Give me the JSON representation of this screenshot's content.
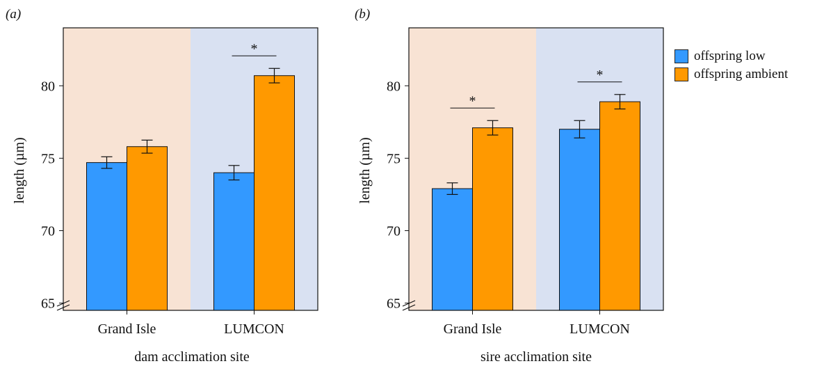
{
  "colors": {
    "low": "#3399ff",
    "ambient": "#ff9900",
    "bg_left": "#f8e3d4",
    "bg_right": "#d9e1f2"
  },
  "legend": {
    "items": [
      {
        "label": "offspring low",
        "color_key": "low"
      },
      {
        "label": "offspring ambient",
        "color_key": "ambient"
      }
    ]
  },
  "chart_data": [
    {
      "type": "bar",
      "panel_label": "(a)",
      "categories": [
        "Grand Isle",
        "LUMCON"
      ],
      "series": [
        {
          "name": "offspring low",
          "values": [
            74.7,
            74.0
          ],
          "errors": [
            0.4,
            0.5
          ]
        },
        {
          "name": "offspring ambient",
          "values": [
            75.8,
            80.7
          ],
          "errors": [
            0.45,
            0.5
          ]
        }
      ],
      "significance": [
        "",
        "*"
      ],
      "xlabel": "dam acclimation site",
      "ylabel": "length (µm)",
      "ylim": [
        64.5,
        84
      ],
      "yticks": [
        65,
        70,
        75,
        80
      ],
      "axis_break": true,
      "legend": "right"
    },
    {
      "type": "bar",
      "panel_label": "(b)",
      "categories": [
        "Grand Isle",
        "LUMCON"
      ],
      "series": [
        {
          "name": "offspring low",
          "values": [
            72.9,
            77.0
          ],
          "errors": [
            0.4,
            0.6
          ]
        },
        {
          "name": "offspring ambient",
          "values": [
            77.1,
            78.9
          ],
          "errors": [
            0.5,
            0.5
          ]
        }
      ],
      "significance": [
        "*",
        "*"
      ],
      "xlabel": "sire acclimation site",
      "ylabel": "length (µm)",
      "ylim": [
        64.5,
        84
      ],
      "yticks": [
        65,
        70,
        75,
        80
      ],
      "axis_break": true,
      "legend": "right"
    }
  ]
}
